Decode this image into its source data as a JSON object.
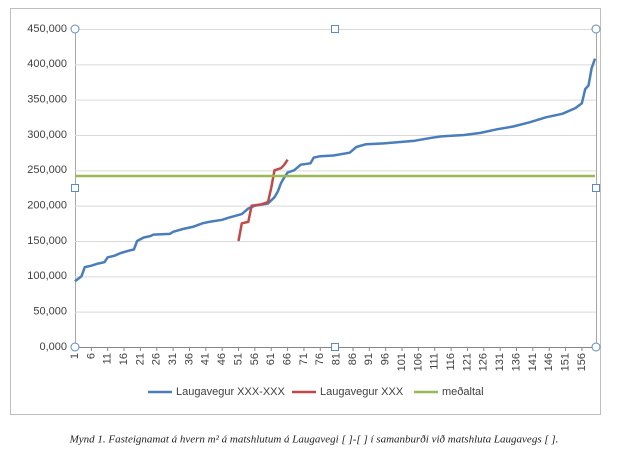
{
  "chart_data": {
    "type": "line",
    "caption": "Mynd 1. Fasteignamat á hvern m² á matshlutum á Laugavegi [ ]-[ ] í samanburði við matshluta Laugavegs [ ].",
    "xlim": [
      1,
      160
    ],
    "xticks": [
      1,
      6,
      11,
      16,
      21,
      26,
      31,
      36,
      41,
      46,
      51,
      56,
      61,
      66,
      71,
      76,
      81,
      86,
      91,
      96,
      101,
      106,
      111,
      116,
      121,
      126,
      131,
      136,
      141,
      146,
      151,
      156
    ],
    "ylim": [
      0,
      450000
    ],
    "yticks": [
      {
        "value": 0,
        "label": "0,000"
      },
      {
        "value": 50000,
        "label": "50,000"
      },
      {
        "value": 100000,
        "label": "100,000"
      },
      {
        "value": 150000,
        "label": "150,000"
      },
      {
        "value": 200000,
        "label": "200,000"
      },
      {
        "value": 250000,
        "label": "250,000"
      },
      {
        "value": 300000,
        "label": "300,000"
      },
      {
        "value": 350000,
        "label": "350,000"
      },
      {
        "value": 400000,
        "label": "400,000"
      },
      {
        "value": 450000,
        "label": "450,000"
      }
    ],
    "grid": true,
    "legend": "bottom",
    "series": [
      {
        "name": "Laugavegur XXX-XXX",
        "color": "#4a7ebb",
        "x": [
          1,
          3,
          4,
          6,
          8,
          10,
          11,
          13,
          15,
          18,
          19,
          20,
          22,
          24,
          25,
          30,
          31,
          34,
          37,
          40,
          42,
          46,
          48,
          52,
          54,
          56,
          60,
          62,
          63,
          64,
          65,
          66,
          68,
          70,
          73,
          74,
          76,
          80,
          85,
          87,
          90,
          95,
          100,
          105,
          110,
          113,
          120,
          125,
          130,
          135,
          140,
          145,
          150,
          154,
          156,
          157,
          158,
          159,
          160
        ],
        "values": [
          93000,
          100000,
          113000,
          115000,
          118000,
          120000,
          127000,
          129000,
          133000,
          137000,
          138000,
          150000,
          155000,
          157000,
          159000,
          160000,
          163000,
          167000,
          170000,
          175000,
          177000,
          180000,
          183000,
          188000,
          196000,
          200000,
          203000,
          212000,
          220000,
          232000,
          240000,
          247000,
          250000,
          258000,
          260000,
          268000,
          270000,
          271000,
          275000,
          283000,
          287000,
          288000,
          290000,
          292000,
          296000,
          298000,
          300000,
          303000,
          308000,
          312000,
          318000,
          325000,
          330000,
          338000,
          345000,
          365000,
          370000,
          395000,
          408000
        ]
      },
      {
        "name": "Laugavegur XXX",
        "color": "#be4b48",
        "x": [
          51,
          52,
          54,
          55,
          58,
          60,
          61,
          62,
          64,
          65,
          66
        ],
        "values": [
          150000,
          175000,
          177000,
          200000,
          202000,
          205000,
          225000,
          250000,
          253000,
          258000,
          265000
        ]
      },
      {
        "name": "meðaltal",
        "color": "#98b954",
        "x": [
          1,
          160
        ],
        "values": [
          242000,
          242000
        ]
      }
    ]
  }
}
